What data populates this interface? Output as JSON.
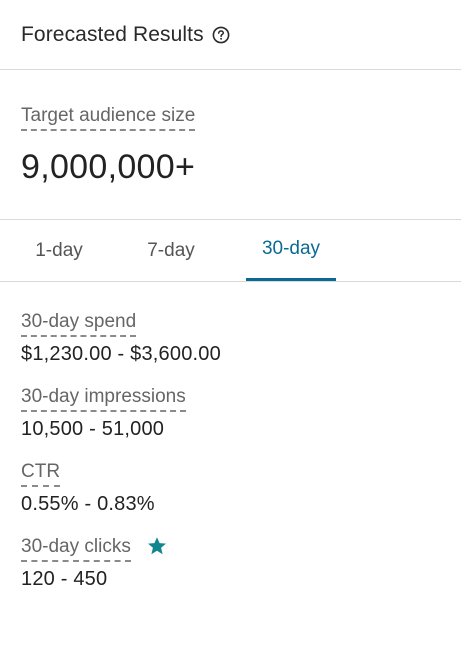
{
  "header": {
    "title": "Forecasted Results",
    "help_icon": "question-circle-icon"
  },
  "audience": {
    "label": "Target audience size",
    "value": "9,000,000+"
  },
  "tabs": [
    {
      "label": "1-day",
      "active": false
    },
    {
      "label": "7-day",
      "active": false
    },
    {
      "label": "30-day",
      "active": true
    }
  ],
  "metrics": [
    {
      "label": "30-day spend",
      "value": "$1,230.00 - $3,600.00"
    },
    {
      "label": "30-day impressions",
      "value": "10,500 - 51,000"
    },
    {
      "label": "CTR",
      "value": "0.55% - 0.83%"
    },
    {
      "label": "30-day clicks",
      "value": "120 - 450",
      "icon": "star-icon"
    }
  ],
  "colors": {
    "accent": "#0a6a93",
    "star": "#11868f",
    "divider": "#d9d9d9",
    "muted_label": "#666666"
  }
}
